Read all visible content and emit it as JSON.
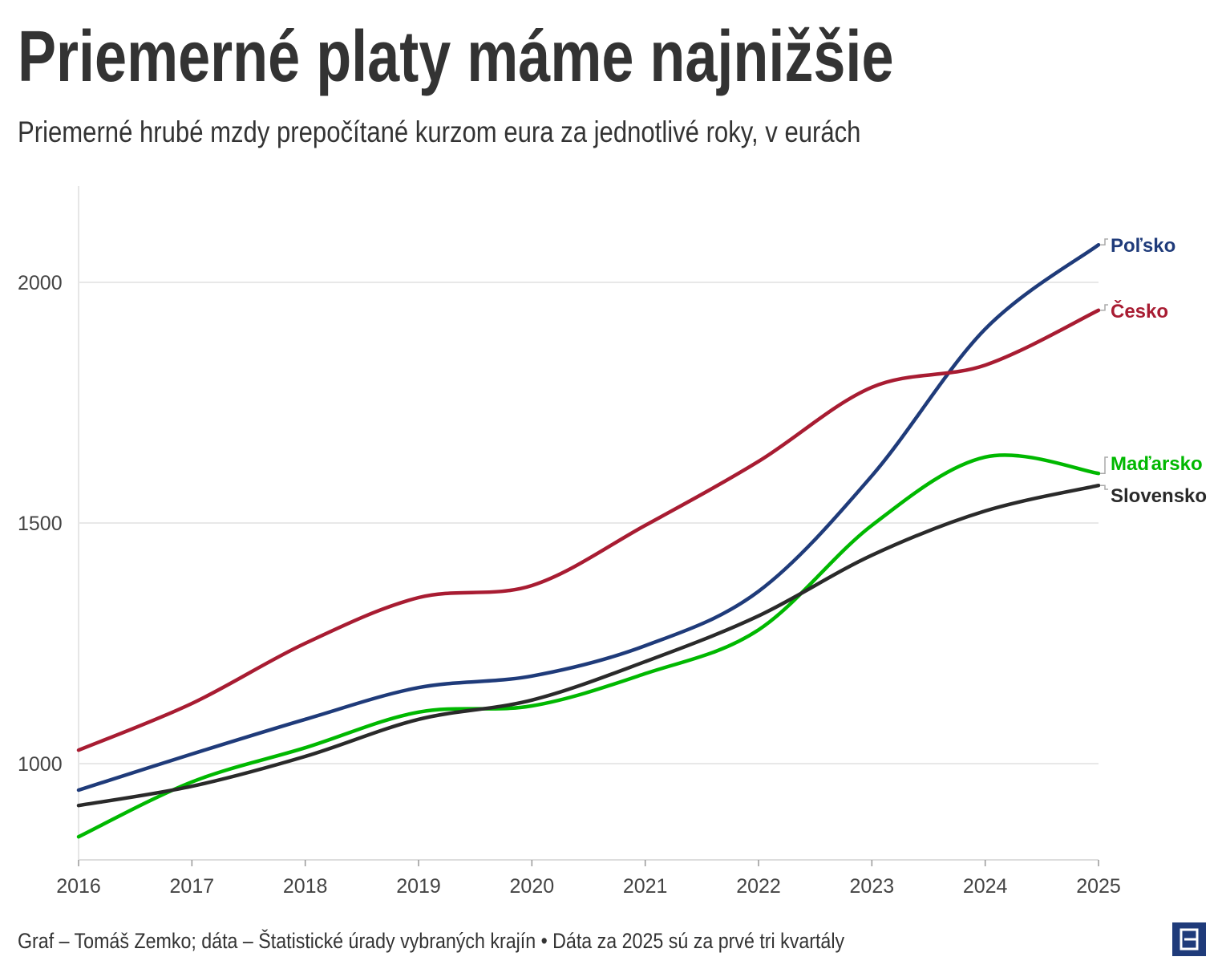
{
  "title": "Priemerné platy máme najnižšie",
  "subtitle": "Priemerné hrubé mzdy prepočítané kurzom eura za jednotlivé roky, v eurách",
  "footer": "Graf – Tomáš Zemko; dáta – Štatistické úrady vybraných krajín • Dáta za 2025 sú za prvé tri kvartály",
  "chart_data": {
    "type": "line",
    "x": [
      2016,
      2017,
      2018,
      2019,
      2020,
      2021,
      2022,
      2023,
      2024,
      2025
    ],
    "xticks": [
      "2016",
      "2017",
      "2018",
      "2019",
      "2020",
      "2021",
      "2022",
      "2023",
      "2024",
      "2025"
    ],
    "yticks": [
      1000,
      1500,
      2000
    ],
    "ylim": [
      800,
      2200
    ],
    "xlabel": "",
    "ylabel": "",
    "grid": true,
    "legend": "direct labels at right",
    "series": [
      {
        "name": "Poľsko",
        "color": "#1f3b7a",
        "values": [
          945,
          1020,
          1092,
          1158,
          1182,
          1245,
          1358,
          1598,
          1903,
          2078
        ]
      },
      {
        "name": "Česko",
        "color": "#a81c32",
        "values": [
          1028,
          1125,
          1250,
          1345,
          1370,
          1495,
          1628,
          1782,
          1828,
          1942
        ]
      },
      {
        "name": "Maďarsko",
        "color": "#00b800",
        "values": [
          848,
          962,
          1033,
          1107,
          1120,
          1187,
          1278,
          1495,
          1637,
          1603
        ]
      },
      {
        "name": "Slovensko",
        "color": "#2a2a2a",
        "values": [
          913,
          953,
          1015,
          1092,
          1132,
          1212,
          1307,
          1433,
          1525,
          1578
        ]
      }
    ]
  }
}
